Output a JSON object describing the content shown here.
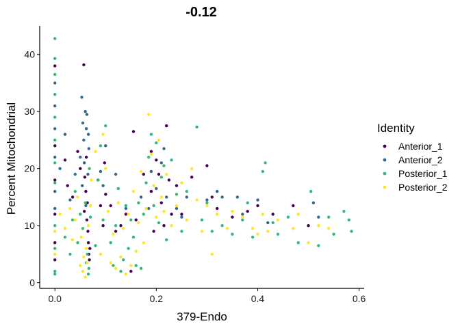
{
  "chart_data": {
    "type": "scatter",
    "title": "-0.12",
    "xlabel": "379-Endo",
    "ylabel": "Percent Mitochondrial",
    "xlim": [
      -0.03,
      0.61
    ],
    "ylim": [
      -1,
      45
    ],
    "xticks": [
      "0.0",
      "0.2",
      "0.4",
      "0.6"
    ],
    "yticks": [
      "0",
      "10",
      "20",
      "30",
      "40"
    ],
    "grid": false,
    "legend": {
      "title": "Identity",
      "position": "right"
    },
    "series": [
      {
        "name": "Anterior_1",
        "color": "#440154",
        "points": [
          [
            0.0,
            38.0
          ],
          [
            0.0,
            24.0
          ],
          [
            0.0,
            18.0
          ],
          [
            0.0,
            12.0
          ],
          [
            0.0,
            7.0
          ],
          [
            0.0,
            4.0
          ],
          [
            0.02,
            21.5
          ],
          [
            0.025,
            17.0
          ],
          [
            0.035,
            15.0
          ],
          [
            0.045,
            23.0
          ],
          [
            0.05,
            20.0
          ],
          [
            0.057,
            38.2
          ],
          [
            0.062,
            22.0
          ],
          [
            0.064,
            14.0
          ],
          [
            0.065,
            9.0
          ],
          [
            0.066,
            7.0
          ],
          [
            0.067,
            5.0
          ],
          [
            0.068,
            4.0
          ],
          [
            0.069,
            6.0
          ],
          [
            0.063,
            11.0
          ],
          [
            0.061,
            16.0
          ],
          [
            0.059,
            18.5
          ],
          [
            0.058,
            12.5
          ],
          [
            0.085,
            18.0
          ],
          [
            0.09,
            13.5
          ],
          [
            0.095,
            10.0
          ],
          [
            0.098,
            21.0
          ],
          [
            0.1,
            15.5
          ],
          [
            0.11,
            13.5
          ],
          [
            0.12,
            9.0
          ],
          [
            0.13,
            10.0
          ],
          [
            0.14,
            12.0
          ],
          [
            0.15,
            2.0
          ],
          [
            0.155,
            26.5
          ],
          [
            0.16,
            11.0
          ],
          [
            0.175,
            19.0
          ],
          [
            0.19,
            23.0
          ],
          [
            0.19,
            16.0
          ],
          [
            0.195,
            9.0
          ],
          [
            0.2,
            21.5
          ],
          [
            0.205,
            19.0
          ],
          [
            0.21,
            14.0
          ],
          [
            0.215,
            10.0
          ],
          [
            0.22,
            27.5
          ],
          [
            0.225,
            18.0
          ],
          [
            0.23,
            12.0
          ],
          [
            0.24,
            17.0
          ],
          [
            0.25,
            12.0
          ],
          [
            0.27,
            18.5
          ],
          [
            0.3,
            20.5
          ],
          [
            0.31,
            15.0
          ],
          [
            0.32,
            13.0
          ],
          [
            0.35,
            11.5
          ],
          [
            0.38,
            12.5
          ],
          [
            0.4,
            13.5
          ],
          [
            0.43,
            12.0
          ],
          [
            0.47,
            13.5
          ],
          [
            0.5,
            10.0
          ]
        ]
      },
      {
        "name": "Anterior_2",
        "color": "#31688e",
        "points": [
          [
            0.0,
            35.0
          ],
          [
            0.0,
            31.0
          ],
          [
            0.0,
            27.0
          ],
          [
            0.0,
            22.0
          ],
          [
            0.0,
            16.0
          ],
          [
            0.0,
            13.0
          ],
          [
            0.01,
            20.0
          ],
          [
            0.02,
            26.0
          ],
          [
            0.03,
            14.5
          ],
          [
            0.04,
            19.0
          ],
          [
            0.05,
            22.0
          ],
          [
            0.053,
            32.5
          ],
          [
            0.055,
            28.0
          ],
          [
            0.057,
            25.0
          ],
          [
            0.06,
            30.0
          ],
          [
            0.062,
            27.0
          ],
          [
            0.058,
            21.0
          ],
          [
            0.054,
            17.0
          ],
          [
            0.065,
            19.0
          ],
          [
            0.067,
            23.5
          ],
          [
            0.061,
            13.5
          ],
          [
            0.063,
            29.5
          ],
          [
            0.066,
            26.0
          ],
          [
            0.09,
            19.5
          ],
          [
            0.095,
            17.0
          ],
          [
            0.1,
            24.0
          ],
          [
            0.12,
            19.0
          ],
          [
            0.14,
            13.0
          ],
          [
            0.17,
            15.0
          ],
          [
            0.185,
            13.0
          ],
          [
            0.19,
            19.5
          ],
          [
            0.2,
            16.5
          ],
          [
            0.21,
            21.0
          ],
          [
            0.215,
            23.5
          ],
          [
            0.22,
            15.0
          ],
          [
            0.24,
            13.0
          ],
          [
            0.25,
            11.5
          ],
          [
            0.26,
            15.0
          ],
          [
            0.3,
            14.5
          ],
          [
            0.32,
            16.0
          ],
          [
            0.33,
            15.0
          ],
          [
            0.36,
            15.0
          ],
          [
            0.37,
            12.0
          ],
          [
            0.4,
            14.5
          ],
          [
            0.42,
            10.5
          ],
          [
            0.51,
            14.0
          ],
          [
            0.52,
            11.5
          ]
        ]
      },
      {
        "name": "Posterior_1",
        "color": "#35b779",
        "points": [
          [
            0.0,
            42.8
          ],
          [
            0.0,
            39.3
          ],
          [
            0.0,
            36.5
          ],
          [
            0.0,
            33.0
          ],
          [
            0.0,
            29.0
          ],
          [
            0.0,
            25.0
          ],
          [
            0.0,
            21.0
          ],
          [
            0.0,
            17.5
          ],
          [
            0.0,
            10.0
          ],
          [
            0.0,
            6.0
          ],
          [
            0.0,
            2.0
          ],
          [
            0.0,
            1.5
          ],
          [
            0.02,
            8.0
          ],
          [
            0.03,
            5.0
          ],
          [
            0.035,
            11.0
          ],
          [
            0.04,
            16.0
          ],
          [
            0.045,
            7.0
          ],
          [
            0.05,
            12.0
          ],
          [
            0.055,
            9.5
          ],
          [
            0.06,
            14.0
          ],
          [
            0.062,
            3.5
          ],
          [
            0.064,
            5.0
          ],
          [
            0.066,
            1.5
          ],
          [
            0.067,
            2.5
          ],
          [
            0.068,
            20.0
          ],
          [
            0.07,
            11.5
          ],
          [
            0.08,
            6.5
          ],
          [
            0.085,
            18.0
          ],
          [
            0.09,
            24.0
          ],
          [
            0.095,
            11.0
          ],
          [
            0.1,
            27.5
          ],
          [
            0.11,
            7.0
          ],
          [
            0.115,
            3.0
          ],
          [
            0.12,
            10.0
          ],
          [
            0.125,
            16.5
          ],
          [
            0.13,
            2.0
          ],
          [
            0.135,
            4.0
          ],
          [
            0.14,
            13.5
          ],
          [
            0.145,
            6.0
          ],
          [
            0.15,
            11.0
          ],
          [
            0.155,
            8.0
          ],
          [
            0.16,
            3.0
          ],
          [
            0.165,
            14.0
          ],
          [
            0.17,
            2.5
          ],
          [
            0.175,
            12.0
          ],
          [
            0.18,
            17.5
          ],
          [
            0.185,
            22.0
          ],
          [
            0.19,
            26.0
          ],
          [
            0.195,
            13.5
          ],
          [
            0.2,
            24.5
          ],
          [
            0.205,
            10.5
          ],
          [
            0.21,
            18.5
          ],
          [
            0.215,
            20.5
          ],
          [
            0.22,
            7.5
          ],
          [
            0.23,
            21.5
          ],
          [
            0.24,
            15.5
          ],
          [
            0.25,
            9.0
          ],
          [
            0.26,
            16.0
          ],
          [
            0.28,
            27.3
          ],
          [
            0.29,
            11.0
          ],
          [
            0.3,
            14.0
          ],
          [
            0.31,
            9.0
          ],
          [
            0.33,
            10.0
          ],
          [
            0.35,
            8.5
          ],
          [
            0.37,
            11.0
          ],
          [
            0.38,
            14.0
          ],
          [
            0.39,
            8.0
          ],
          [
            0.41,
            19.5
          ],
          [
            0.415,
            21.0
          ],
          [
            0.43,
            10.5
          ],
          [
            0.44,
            8.5
          ],
          [
            0.46,
            11.5
          ],
          [
            0.48,
            7.0
          ],
          [
            0.505,
            16.0
          ],
          [
            0.52,
            6.5
          ],
          [
            0.54,
            11.5
          ],
          [
            0.57,
            12.5
          ],
          [
            0.58,
            11.0
          ],
          [
            0.585,
            9.0
          ],
          [
            0.55,
            8.5
          ]
        ]
      },
      {
        "name": "Posterior_2",
        "color": "#fde725",
        "points": [
          [
            0.0,
            9.0
          ],
          [
            0.0,
            5.0
          ],
          [
            0.01,
            12.0
          ],
          [
            0.02,
            9.5
          ],
          [
            0.03,
            13.0
          ],
          [
            0.035,
            7.5
          ],
          [
            0.04,
            11.0
          ],
          [
            0.045,
            15.0
          ],
          [
            0.05,
            3.0
          ],
          [
            0.052,
            8.0
          ],
          [
            0.055,
            2.0
          ],
          [
            0.057,
            4.5
          ],
          [
            0.06,
            1.0
          ],
          [
            0.062,
            6.0
          ],
          [
            0.064,
            3.5
          ],
          [
            0.066,
            10.0
          ],
          [
            0.07,
            13.5
          ],
          [
            0.072,
            18.0
          ],
          [
            0.08,
            23.0
          ],
          [
            0.09,
            5.0
          ],
          [
            0.095,
            26.0
          ],
          [
            0.1,
            20.0
          ],
          [
            0.105,
            12.5
          ],
          [
            0.11,
            3.5
          ],
          [
            0.115,
            8.5
          ],
          [
            0.12,
            2.5
          ],
          [
            0.125,
            14.0
          ],
          [
            0.13,
            4.5
          ],
          [
            0.135,
            9.5
          ],
          [
            0.14,
            1.5
          ],
          [
            0.145,
            12.0
          ],
          [
            0.15,
            3.0
          ],
          [
            0.155,
            16.0
          ],
          [
            0.16,
            5.5
          ],
          [
            0.165,
            10.5
          ],
          [
            0.17,
            19.5
          ],
          [
            0.175,
            7.0
          ],
          [
            0.18,
            13.0
          ],
          [
            0.185,
            29.5
          ],
          [
            0.19,
            22.5
          ],
          [
            0.195,
            17.0
          ],
          [
            0.2,
            11.5
          ],
          [
            0.205,
            25.0
          ],
          [
            0.21,
            15.0
          ],
          [
            0.215,
            12.5
          ],
          [
            0.22,
            19.0
          ],
          [
            0.23,
            10.0
          ],
          [
            0.24,
            13.5
          ],
          [
            0.25,
            17.5
          ],
          [
            0.26,
            11.0
          ],
          [
            0.27,
            20.0
          ],
          [
            0.28,
            14.5
          ],
          [
            0.29,
            9.0
          ],
          [
            0.3,
            13.5
          ],
          [
            0.31,
            5.0
          ],
          [
            0.32,
            12.0
          ],
          [
            0.34,
            9.5
          ],
          [
            0.35,
            12.5
          ],
          [
            0.37,
            11.5
          ],
          [
            0.39,
            9.5
          ],
          [
            0.4,
            8.5
          ],
          [
            0.41,
            12.0
          ],
          [
            0.42,
            9.0
          ],
          [
            0.44,
            11.0
          ],
          [
            0.47,
            9.5
          ],
          [
            0.48,
            12.0
          ],
          [
            0.5,
            7.0
          ],
          [
            0.52,
            10.0
          ],
          [
            0.54,
            9.5
          ]
        ]
      }
    ]
  }
}
